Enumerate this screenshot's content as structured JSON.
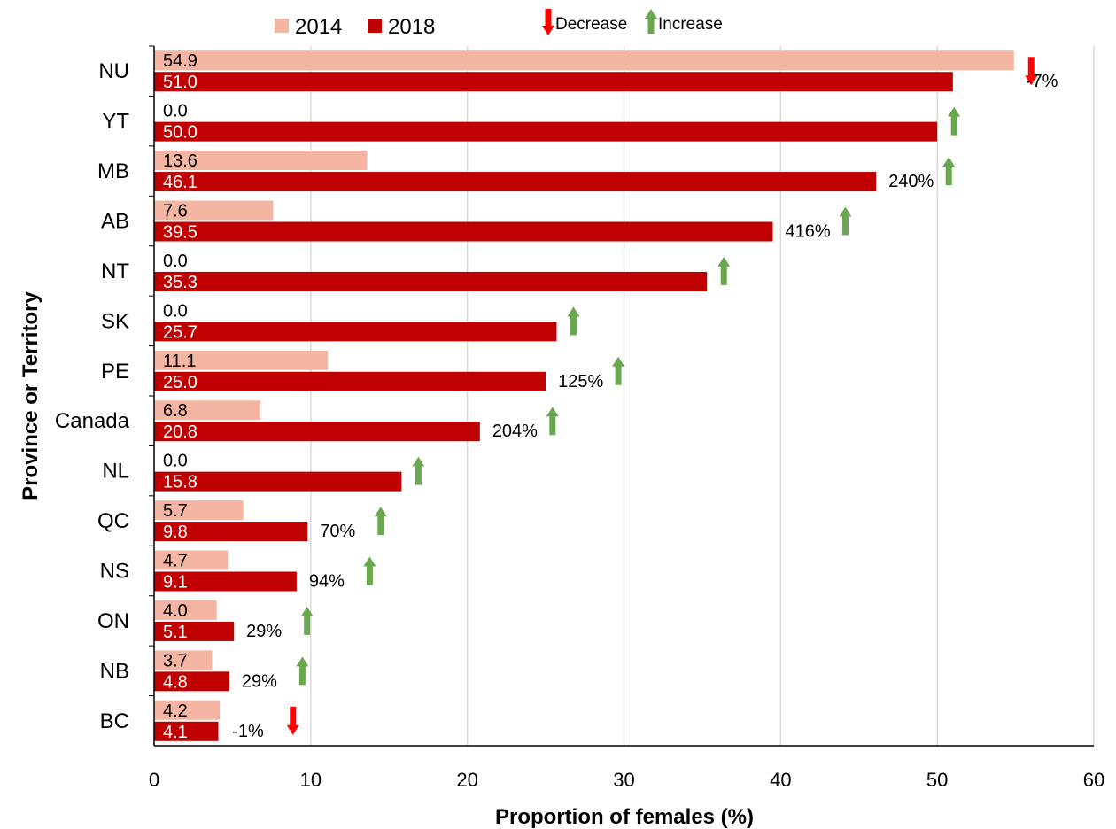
{
  "chart_data": {
    "type": "bar",
    "orientation": "horizontal",
    "xlabel": "Proportion of females (%)",
    "ylabel": "Province or Territory",
    "xlim": [
      0,
      60
    ],
    "xticks": [
      0,
      10,
      20,
      30,
      40,
      50,
      60
    ],
    "grid": true,
    "legend": {
      "placement": "top",
      "entries": [
        {
          "name": "2014",
          "color": "#F4B6A3"
        },
        {
          "name": "2018",
          "color": "#C00000"
        }
      ],
      "arrows": [
        {
          "label": "Decrease",
          "direction": "down",
          "color": "#FF0000"
        },
        {
          "label": "Increase",
          "direction": "up",
          "color": "#6AA84F"
        }
      ]
    },
    "categories": [
      "NU",
      "YT",
      "MB",
      "AB",
      "NT",
      "SK",
      "PE",
      "Canada",
      "NL",
      "QC",
      "NS",
      "ON",
      "NB",
      "BC"
    ],
    "series": [
      {
        "name": "2014",
        "color": "#F4B6A3",
        "values": [
          54.9,
          0.0,
          13.6,
          7.6,
          0.0,
          0.0,
          11.1,
          6.8,
          0.0,
          5.7,
          4.7,
          4.0,
          3.7,
          4.2
        ],
        "labels": [
          "54.9",
          "0.0",
          "13.6",
          "7.6",
          "0.0",
          "0.0",
          "11.1",
          "6.8",
          "0.0",
          "5.7",
          "4.7",
          "4.0",
          "3.7",
          "4.2"
        ]
      },
      {
        "name": "2018",
        "color": "#C00000",
        "values": [
          51.0,
          50.0,
          46.1,
          39.5,
          35.3,
          25.7,
          25.0,
          20.8,
          15.8,
          9.8,
          9.1,
          5.1,
          4.8,
          4.1
        ],
        "labels": [
          "51.0",
          "50.0",
          "46.1",
          "39.5",
          "35.3",
          "25.7",
          "25.0",
          "20.8",
          "15.8",
          "9.8",
          "9.1",
          "5.1",
          "4.8",
          "4.1"
        ]
      }
    ],
    "changes": [
      {
        "category": "NU",
        "label": "-7%",
        "direction": "down"
      },
      {
        "category": "YT",
        "label": "",
        "direction": "up"
      },
      {
        "category": "MB",
        "label": "240%",
        "direction": "up"
      },
      {
        "category": "AB",
        "label": "416%",
        "direction": "up"
      },
      {
        "category": "NT",
        "label": "",
        "direction": "up"
      },
      {
        "category": "SK",
        "label": "",
        "direction": "up"
      },
      {
        "category": "PE",
        "label": "125%",
        "direction": "up"
      },
      {
        "category": "Canada",
        "label": "204%",
        "direction": "up"
      },
      {
        "category": "NL",
        "label": "",
        "direction": "up"
      },
      {
        "category": "QC",
        "label": "70%",
        "direction": "up"
      },
      {
        "category": "NS",
        "label": "94%",
        "direction": "up"
      },
      {
        "category": "ON",
        "label": "29%",
        "direction": "up"
      },
      {
        "category": "NB",
        "label": "29%",
        "direction": "up"
      },
      {
        "category": "BC",
        "label": "-1%",
        "direction": "down"
      }
    ]
  }
}
